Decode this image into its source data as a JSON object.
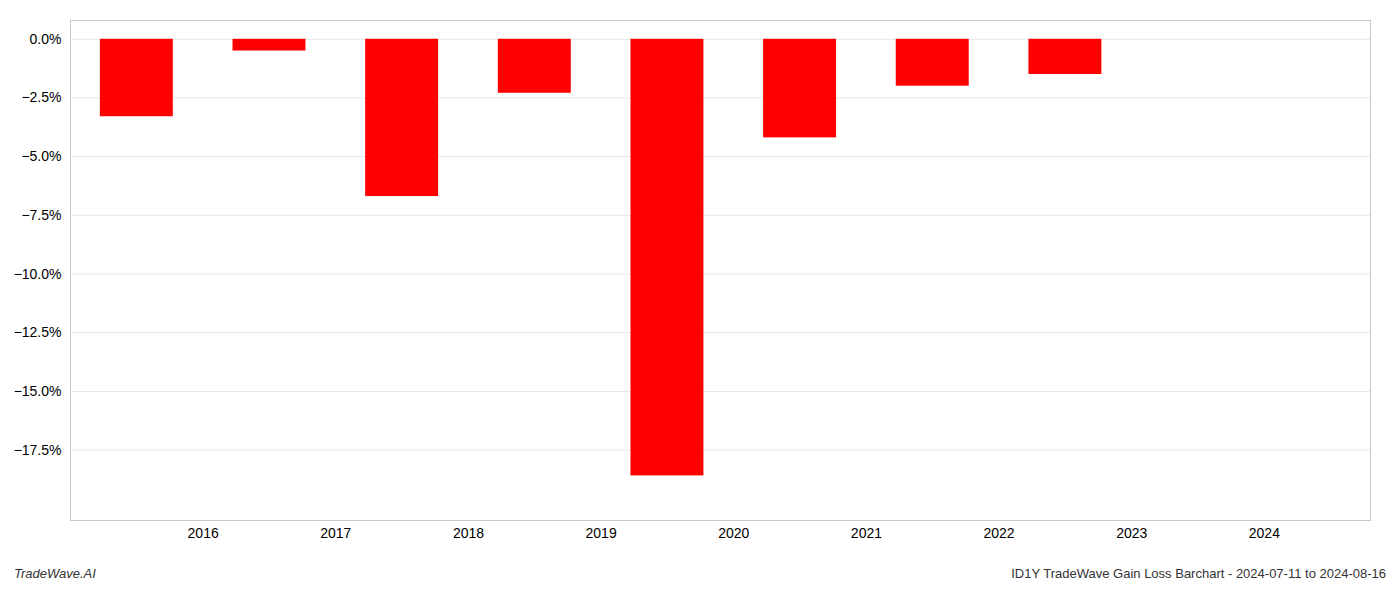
{
  "chart_data": {
    "type": "bar",
    "title": "ID1Y TradeWave Gain Loss Barchart - 2024-07-11 to 2024-08-16",
    "annotations": [
      "TradeWave.AI"
    ],
    "x": [
      2015.5,
      2016.5,
      2017.5,
      2018.5,
      2019.5,
      2020.5,
      2021.5,
      2022.5,
      2023.5
    ],
    "values": [
      -3.3,
      -0.5,
      -6.7,
      -2.3,
      -18.6,
      -4.2,
      -2.0,
      -1.5,
      0.0
    ],
    "color": "#ff0000",
    "xlim": [
      2015.0,
      2024.8
    ],
    "xticks": [
      2016,
      2017,
      2018,
      2019,
      2020,
      2021,
      2022,
      2023,
      2024
    ],
    "ylim": [
      -20.5,
      0.8
    ],
    "yticks": [
      {
        "value": 0.0,
        "label": "0.0%"
      },
      {
        "value": -2.5,
        "label": "−2.5%"
      },
      {
        "value": -5.0,
        "label": "−5.0%"
      },
      {
        "value": -7.5,
        "label": "−7.5%"
      },
      {
        "value": -10.0,
        "label": "−10.0%"
      },
      {
        "value": -12.5,
        "label": "−12.5%"
      },
      {
        "value": -15.0,
        "label": "−15.0%"
      },
      {
        "value": -17.5,
        "label": "−17.5%"
      }
    ],
    "grid": true
  }
}
